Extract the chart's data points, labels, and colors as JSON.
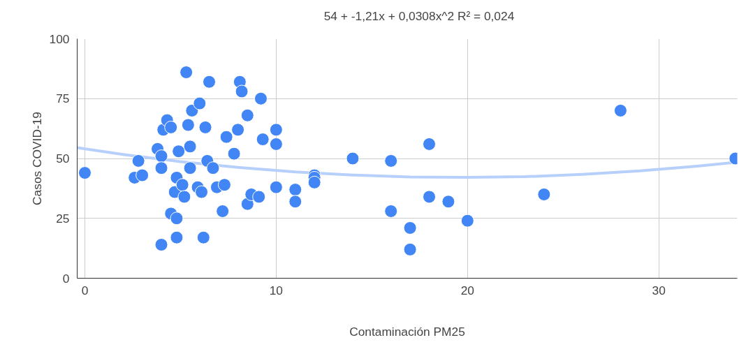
{
  "chart_data": {
    "type": "scatter",
    "xlabel": "Contaminación PM25",
    "ylabel": "Casos COVID-19",
    "xlim": [
      -0.4,
      34.1
    ],
    "ylim": [
      0,
      100
    ],
    "xticks": [
      0,
      10,
      20,
      30
    ],
    "yticks": [
      0,
      25,
      50,
      75,
      100
    ],
    "grid": true,
    "legend": "top",
    "series": [
      {
        "color": "#4285f4",
        "marker": "circle",
        "x": [
          0,
          2.6,
          2.8,
          3.0,
          3.8,
          4.0,
          4.0,
          4.0,
          4.1,
          4.3,
          4.5,
          4.5,
          4.7,
          4.8,
          4.8,
          4.8,
          4.9,
          5.1,
          5.2,
          5.3,
          5.4,
          5.5,
          5.5,
          5.6,
          5.9,
          6.0,
          6.1,
          6.2,
          6.3,
          6.4,
          6.5,
          6.7,
          6.9,
          7.2,
          7.3,
          7.4,
          7.8,
          8.0,
          8.1,
          8.2,
          8.5,
          8.5,
          8.7,
          9.1,
          9.2,
          9.3,
          10,
          10,
          10,
          11,
          11,
          12,
          12,
          12,
          14,
          16,
          16,
          17,
          17,
          18,
          18,
          19,
          20,
          24,
          28,
          34
        ],
        "values": [
          44,
          42,
          49,
          43,
          54,
          51,
          46,
          14,
          62,
          66,
          63,
          27,
          36,
          42,
          17,
          25,
          53,
          39,
          34,
          86,
          64,
          55,
          46,
          70,
          38,
          73,
          36,
          17,
          63,
          49,
          82,
          46,
          38,
          28,
          39,
          59,
          52,
          62,
          82,
          78,
          68,
          31,
          35,
          34,
          75,
          58,
          62,
          56,
          38,
          37,
          32,
          43,
          42,
          40,
          50,
          49,
          28,
          21,
          12,
          56,
          34,
          32,
          24,
          35,
          70,
          50
        ]
      },
      {
        "type": "line",
        "name": "54 + -1,21x + 0,0308x^2 R² = 0,024",
        "color": "#b7d0fb",
        "marker": "none",
        "line_style": "solid",
        "x": [
          -0.4,
          2,
          5,
          8,
          11,
          14,
          17,
          20,
          23,
          26,
          29,
          32,
          34.1
        ],
        "values": [
          54.5,
          51.7,
          48.7,
          46.3,
          44.4,
          43.1,
          42.3,
          42.1,
          42.4,
          43.4,
          44.8,
          46.8,
          48.5
        ]
      }
    ]
  }
}
